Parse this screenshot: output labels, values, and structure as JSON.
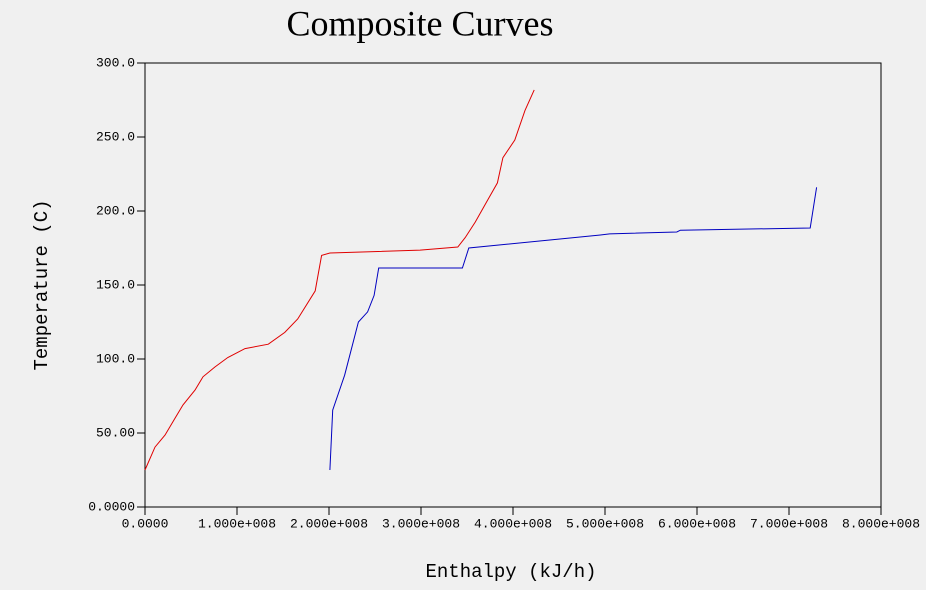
{
  "chart_data": {
    "type": "line",
    "title": "Composite Curves",
    "x_label": "Enthalpy (kJ/h)",
    "y_label": "Temperature (C)",
    "xlim": [
      0,
      800000000
    ],
    "ylim": [
      0,
      300
    ],
    "xticks": [
      {
        "value": 0,
        "label": "0.0000"
      },
      {
        "value": 100000000,
        "label": "1.000e+008"
      },
      {
        "value": 200000000,
        "label": "2.000e+008"
      },
      {
        "value": 300000000,
        "label": "3.000e+008"
      },
      {
        "value": 400000000,
        "label": "4.000e+008"
      },
      {
        "value": 500000000,
        "label": "5.000e+008"
      },
      {
        "value": 600000000,
        "label": "6.000e+008"
      },
      {
        "value": 700000000,
        "label": "7.000e+008"
      },
      {
        "value": 800000000,
        "label": "8.000e+008"
      }
    ],
    "yticks": [
      {
        "value": 0,
        "label": "0.0000"
      },
      {
        "value": 50,
        "label": "50.00"
      },
      {
        "value": 100,
        "label": "100.0"
      },
      {
        "value": 150,
        "label": "150.0"
      },
      {
        "value": 200,
        "label": "200.0"
      },
      {
        "value": 250,
        "label": "250.0"
      },
      {
        "value": 300,
        "label": "300.0"
      }
    ],
    "series": [
      {
        "color": "#e00000",
        "x": [
          0,
          10900000,
          21700000,
          32600000,
          41300000,
          54300000,
          63000000,
          76000000,
          90000000,
          108700000,
          134000000,
          152000000,
          166000000,
          185000000,
          192000000,
          201000000,
          299000000,
          340000000,
          348000000,
          359000000,
          372000000,
          383000000,
          389000000,
          402000000,
          413000000,
          423000000
        ],
        "values": [
          25,
          40.5,
          48.6,
          60,
          69,
          79,
          88,
          94.6,
          101,
          107,
          110,
          118,
          127,
          146,
          170,
          171.6,
          173.6,
          175.7,
          182,
          192.6,
          206.8,
          219,
          236,
          248,
          268,
          281.8
        ]
      },
      {
        "color": "#0000c0",
        "x": [
          201000000,
          204000000,
          217000000,
          232000000,
          242000000,
          249000000,
          254000000,
          345000000,
          352000000,
          495000000,
          505000000,
          578000000,
          582000000,
          723000000,
          730000000
        ],
        "values": [
          25,
          65.5,
          89,
          125,
          131.8,
          143,
          161.5,
          161.5,
          175,
          183.8,
          184.5,
          185.8,
          187,
          188.5,
          216
        ]
      }
    ]
  }
}
